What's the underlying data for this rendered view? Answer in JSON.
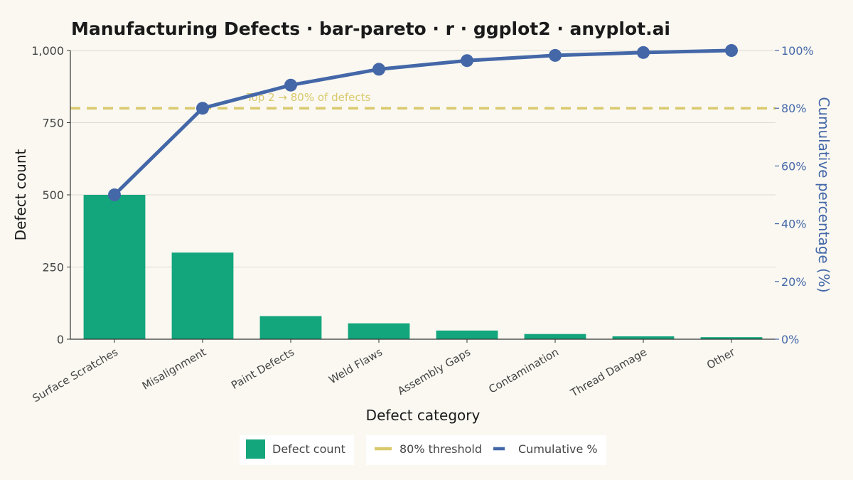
{
  "chart_data": {
    "type": "bar",
    "title": "Manufacturing Defects · bar-pareto · r · ggplot2 · anyplot.ai",
    "xlabel": "Defect category",
    "ylabel": "Defect count",
    "y2label": "Cumulative percentage (%)",
    "categories": [
      "Surface Scratches",
      "Misalignment",
      "Paint Defects",
      "Weld Flaws",
      "Assembly Gaps",
      "Contamination",
      "Thread Damage",
      "Other"
    ],
    "series": [
      {
        "name": "Defect count",
        "type": "bar",
        "axis": "left",
        "values": [
          500,
          300,
          80,
          55,
          30,
          18,
          10,
          7
        ]
      },
      {
        "name": "Cumulative %",
        "type": "line",
        "axis": "right",
        "values": [
          50,
          80,
          88,
          93.5,
          96.5,
          98.3,
          99.3,
          100
        ]
      }
    ],
    "threshold": {
      "name": "80% threshold",
      "value": 80,
      "annotation": "Top 2 → 80% of defects"
    },
    "ylim": [
      0,
      1000
    ],
    "y2lim": [
      0,
      100
    ],
    "yticks": [
      "0",
      "250",
      "500",
      "750",
      "1,000"
    ],
    "yticks_values": [
      0,
      250,
      500,
      750,
      1000
    ],
    "y2ticks": [
      "0%",
      "20%",
      "40%",
      "60%",
      "80%",
      "100%"
    ],
    "y2ticks_values": [
      0,
      20,
      40,
      60,
      80,
      100
    ],
    "legend": {
      "position": "bottom",
      "entries": [
        "Defect count",
        "80% threshold",
        "Cumulative %"
      ]
    },
    "grid": true,
    "colors": {
      "bar": "#13A67D",
      "line": "#4467A8",
      "threshold": "#D9C96C",
      "background": "#FAF8F1",
      "grid": "#DCDAD3"
    }
  }
}
